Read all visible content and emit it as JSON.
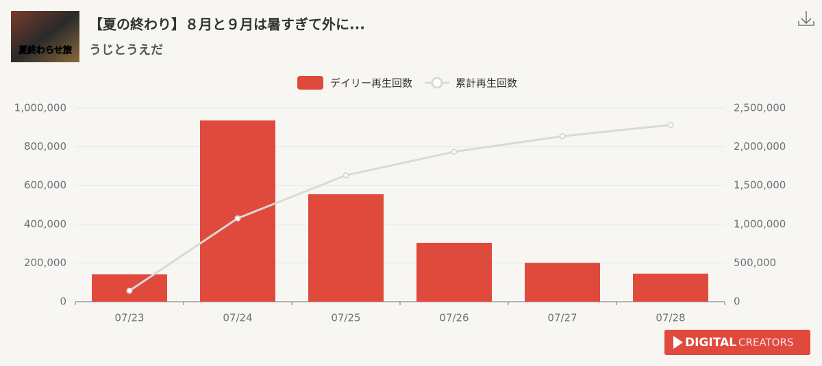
{
  "header": {
    "title": "【夏の終わり】８月と９月は暑すぎて外に...",
    "channel": "うじとうえだ",
    "thumbnail_caption": "夏終わらせ旅"
  },
  "chart_data": {
    "type": "bar_line",
    "categories": [
      "07/23",
      "07/24",
      "07/25",
      "07/26",
      "07/27",
      "07/28"
    ],
    "series": [
      {
        "name": "デイリー再生回数",
        "type": "bar",
        "color": "#e04a3c",
        "values": [
          141000,
          936000,
          555000,
          304000,
          201000,
          145000
        ]
      },
      {
        "name": "累計再生回数",
        "type": "line",
        "axis": "y2",
        "color": "#d9d9d9",
        "values": [
          141000,
          1077000,
          1632000,
          1936000,
          2137000,
          2282000
        ]
      }
    ],
    "ylim": [
      0,
      1000000
    ],
    "yticks": [
      0,
      {
        "value": 200000,
        "label": "200,000"
      },
      {
        "value": 400000,
        "label": "400,000"
      },
      {
        "value": 600000,
        "label": "600,000"
      },
      {
        "value": 800000,
        "label": "800,000"
      },
      {
        "value": 1000000,
        "label": "1,000,000"
      }
    ],
    "y2lim": [
      0,
      2500000
    ],
    "y2ticks": [
      0,
      {
        "value": 500000,
        "label": "500,000"
      },
      {
        "value": 1000000,
        "label": "1,000,000"
      },
      {
        "value": 1500000,
        "label": "1,500,000"
      },
      {
        "value": 2000000,
        "label": "2,000,000"
      },
      {
        "value": 2500000,
        "label": "2,500,000"
      }
    ],
    "grid": true,
    "legend": "top"
  },
  "logo": {
    "word1": "DIGITAL",
    "word2": "CREATORS"
  }
}
